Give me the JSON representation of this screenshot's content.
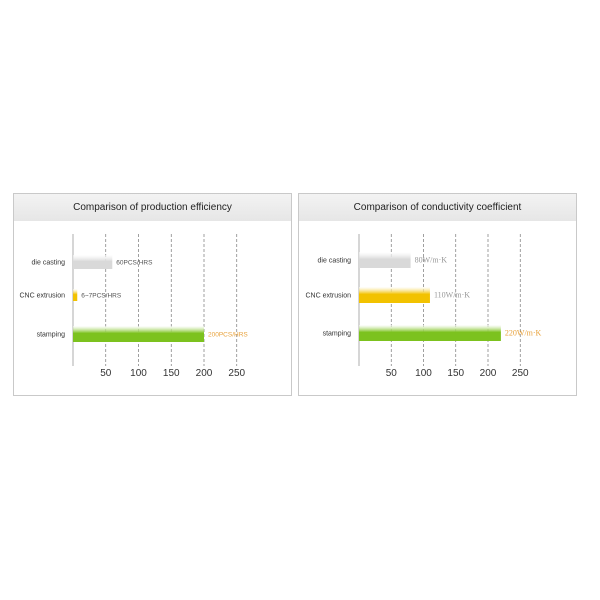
{
  "chart_data": [
    {
      "type": "bar",
      "orientation": "horizontal",
      "title": "Comparison of production efficiency",
      "categories": [
        "die casting",
        "CNC extrusion",
        "stamping"
      ],
      "values": [
        60,
        6.5,
        200
      ],
      "data_labels": [
        "60PCS/HRS",
        "6~7PCS/HRS",
        "200PCS/HRS"
      ],
      "bar_colors": [
        "#d9d9d9",
        "#f2c200",
        "#7cc21e"
      ],
      "label_colors": [
        "#555555",
        "#555555",
        "#e8a23c"
      ],
      "x_ticks": [
        50,
        100,
        150,
        200,
        250
      ],
      "xlim": [
        0,
        300
      ],
      "grid": "dashed-vertical"
    },
    {
      "type": "bar",
      "orientation": "horizontal",
      "title": "Comparison  of conductivity coefficient",
      "categories": [
        "die casting",
        "CNC extrusion",
        "stamping"
      ],
      "values": [
        80,
        110,
        220
      ],
      "data_labels": [
        "80W/m·K",
        "110W/m·K",
        "220W/m·K"
      ],
      "bar_colors": [
        "#d9d9d9",
        "#f2c200",
        "#7cc21e"
      ],
      "label_colors": [
        "#999999",
        "#999999",
        "#e8a23c"
      ],
      "x_ticks": [
        50,
        100,
        150,
        200,
        250
      ],
      "xlim": [
        0,
        300
      ],
      "grid": "dashed-vertical"
    }
  ]
}
